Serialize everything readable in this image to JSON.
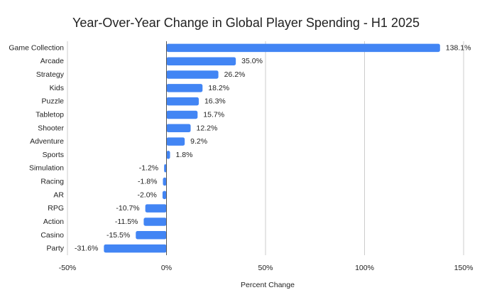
{
  "chart_data": {
    "type": "bar",
    "orientation": "horizontal",
    "title": "Year-Over-Year Change in Global Player Spending - H1 2025",
    "xlabel": "Percent Change",
    "ylabel": "",
    "xlim": [
      -50,
      150
    ],
    "x_ticks": [
      -50,
      0,
      50,
      100,
      150
    ],
    "x_tick_labels": [
      "-50%",
      "0%",
      "50%",
      "100%",
      "150%"
    ],
    "grid": "vertical",
    "legend": "none",
    "categories": [
      "Game Collection",
      "Arcade",
      "Strategy",
      "Kids",
      "Puzzle",
      "Tabletop",
      "Shooter",
      "Adventure",
      "Sports",
      "Simulation",
      "Racing",
      "AR",
      "RPG",
      "Action",
      "Casino",
      "Party"
    ],
    "values": [
      138.1,
      35.0,
      26.2,
      18.2,
      16.3,
      15.7,
      12.2,
      9.2,
      1.8,
      -1.2,
      -1.8,
      -2.0,
      -10.7,
      -11.5,
      -15.5,
      -31.6
    ],
    "data_labels": [
      "138.1%",
      "35.0%",
      "26.2%",
      "18.2%",
      "16.3%",
      "15.7%",
      "12.2%",
      "9.2%",
      "1.8%",
      "-1.2%",
      "-1.8%",
      "-2.0%",
      "-10.7%",
      "-11.5%",
      "-15.5%",
      "-31.6%"
    ],
    "colors": {
      "bar": "#4285f4",
      "grid": "#cccccc",
      "zero_axis": "#555555",
      "text": "#222222"
    }
  }
}
